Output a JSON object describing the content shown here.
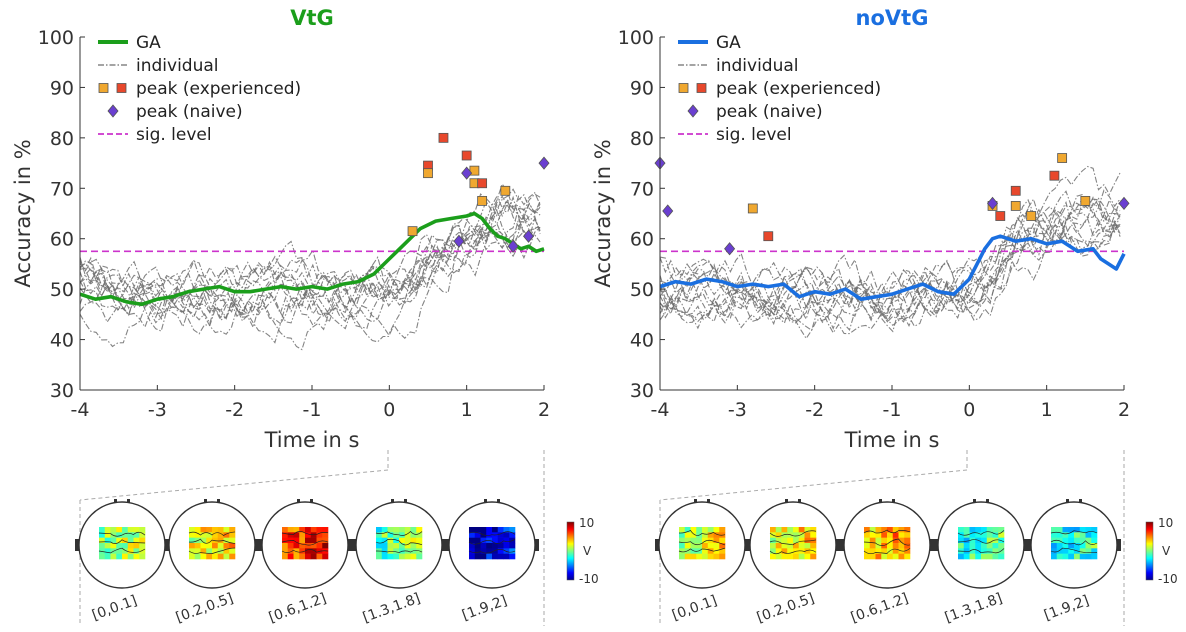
{
  "chart_data": [
    {
      "type": "line",
      "title": "VtG",
      "title_color": "#1b9e1b",
      "xlabel": "Time in s",
      "ylabel": "Accuracy in %",
      "xlim": [
        -4,
        2
      ],
      "ylim": [
        30,
        100
      ],
      "xticks": [
        "-4",
        "-3",
        "-2",
        "-1",
        "0",
        "1",
        "2"
      ],
      "yticks": [
        "30",
        "40",
        "50",
        "60",
        "70",
        "80",
        "90",
        "100"
      ],
      "grid": false,
      "legend_position": "top-left",
      "legend": {
        "ga": "GA",
        "individual": "individual",
        "peak_experienced": "peak (experienced)",
        "peak_naive": "peak (naive)",
        "sig_level": "sig. level"
      },
      "sig_level": 57.5,
      "colors": {
        "ga": "#1b9e1b",
        "individual": "#6e6e6e",
        "sig": "#cc33cc",
        "peak_exp_1": "#f0a830",
        "peak_exp_2": "#e8482c",
        "peak_naive": "#6a3fd0"
      },
      "series": [
        {
          "name": "GA",
          "x": [
            -4.0,
            -3.8,
            -3.6,
            -3.4,
            -3.2,
            -3.0,
            -2.8,
            -2.6,
            -2.4,
            -2.2,
            -2.0,
            -1.8,
            -1.6,
            -1.4,
            -1.2,
            -1.0,
            -0.8,
            -0.6,
            -0.4,
            -0.2,
            0.0,
            0.2,
            0.4,
            0.6,
            0.8,
            1.0,
            1.1,
            1.2,
            1.3,
            1.4,
            1.5,
            1.6,
            1.7,
            1.8,
            1.9,
            2.0
          ],
          "y": [
            49,
            48,
            48.5,
            47.5,
            47,
            48,
            48.5,
            49.5,
            50,
            50.5,
            49.5,
            49.5,
            50,
            50.5,
            50,
            50.5,
            50,
            51,
            51.5,
            53,
            56,
            59,
            62,
            63.5,
            64,
            64.5,
            65,
            64,
            62,
            60.5,
            60,
            59,
            58,
            58.5,
            57.5,
            58
          ]
        }
      ],
      "peaks_experienced": [
        {
          "x": 0.3,
          "y": 61.5
        },
        {
          "x": 0.5,
          "y": 74.5
        },
        {
          "x": 0.5,
          "y": 73
        },
        {
          "x": 0.7,
          "y": 80
        },
        {
          "x": 1.0,
          "y": 76.5
        },
        {
          "x": 1.1,
          "y": 73.5
        },
        {
          "x": 1.1,
          "y": 71
        },
        {
          "x": 1.2,
          "y": 71
        },
        {
          "x": 1.2,
          "y": 67.5
        },
        {
          "x": 1.5,
          "y": 69.5
        }
      ],
      "peaks_naive": [
        {
          "x": 0.9,
          "y": 59.5
        },
        {
          "x": 1.0,
          "y": 73
        },
        {
          "x": 1.6,
          "y": 58.5
        },
        {
          "x": 1.8,
          "y": 60.5
        },
        {
          "x": 2.0,
          "y": 75
        }
      ],
      "topoplots": {
        "windows": [
          "[0,0.1]",
          "[0.2,0.5]",
          "[0.6,1.2]",
          "[1.3,1.8]",
          "[1.9,2]"
        ],
        "mean_values": [
          1,
          3,
          7,
          0,
          -8
        ]
      },
      "colorbar": {
        "max_label": "10",
        "min_label": "-10",
        "unit": "V"
      }
    },
    {
      "type": "line",
      "title": "noVtG",
      "title_color": "#1a6fe0",
      "xlabel": "Time in s",
      "ylabel": "Accuracy in %",
      "xlim": [
        -4,
        2
      ],
      "ylim": [
        30,
        100
      ],
      "xticks": [
        "-4",
        "-3",
        "-2",
        "-1",
        "0",
        "1",
        "2"
      ],
      "yticks": [
        "30",
        "40",
        "50",
        "60",
        "70",
        "80",
        "90",
        "100"
      ],
      "grid": false,
      "legend_position": "top-left",
      "legend": {
        "ga": "GA",
        "individual": "individual",
        "peak_experienced": "peak (experienced)",
        "peak_naive": "peak (naive)",
        "sig_level": "sig. level"
      },
      "sig_level": 57.5,
      "colors": {
        "ga": "#1a6fe0",
        "individual": "#6e6e6e",
        "sig": "#cc33cc",
        "peak_exp_1": "#f0a830",
        "peak_exp_2": "#e8482c",
        "peak_naive": "#6a3fd0"
      },
      "series": [
        {
          "name": "GA",
          "x": [
            -4.0,
            -3.8,
            -3.6,
            -3.4,
            -3.2,
            -3.0,
            -2.8,
            -2.6,
            -2.4,
            -2.2,
            -2.0,
            -1.8,
            -1.6,
            -1.4,
            -1.2,
            -1.0,
            -0.8,
            -0.6,
            -0.4,
            -0.2,
            0.0,
            0.1,
            0.2,
            0.3,
            0.4,
            0.6,
            0.8,
            1.0,
            1.2,
            1.4,
            1.6,
            1.7,
            1.8,
            1.9,
            2.0
          ],
          "y": [
            50.5,
            51.5,
            51,
            52,
            51.5,
            50.5,
            51,
            50.5,
            51,
            48.5,
            49.5,
            49,
            50,
            48,
            48.5,
            49,
            50,
            51,
            49.5,
            49,
            52,
            55,
            58,
            60,
            60.5,
            59.5,
            60,
            59,
            59.5,
            57.5,
            58,
            56,
            55,
            54,
            57
          ]
        }
      ],
      "peaks_experienced": [
        {
          "x": -2.8,
          "y": 66
        },
        {
          "x": -2.6,
          "y": 60.5
        },
        {
          "x": 0.3,
          "y": 66.5
        },
        {
          "x": 0.4,
          "y": 64.5
        },
        {
          "x": 0.6,
          "y": 69.5
        },
        {
          "x": 0.6,
          "y": 66.5
        },
        {
          "x": 0.8,
          "y": 64.5
        },
        {
          "x": 1.1,
          "y": 72.5
        },
        {
          "x": 1.2,
          "y": 76
        },
        {
          "x": 1.5,
          "y": 67.5
        }
      ],
      "peaks_naive": [
        {
          "x": -4.0,
          "y": 75
        },
        {
          "x": -3.9,
          "y": 65.5
        },
        {
          "x": -3.1,
          "y": 58
        },
        {
          "x": 0.3,
          "y": 67
        },
        {
          "x": 2.0,
          "y": 67
        }
      ],
      "topoplots": {
        "windows": [
          "[0,0.1]",
          "[0.2,0.5]",
          "[0.6,1.2]",
          "[1.3,1.8]",
          "[1.9,2]"
        ],
        "mean_values": [
          2,
          3,
          4,
          -1,
          -2
        ]
      },
      "colorbar": {
        "max_label": "10",
        "min_label": "-10",
        "unit": "V"
      }
    }
  ]
}
